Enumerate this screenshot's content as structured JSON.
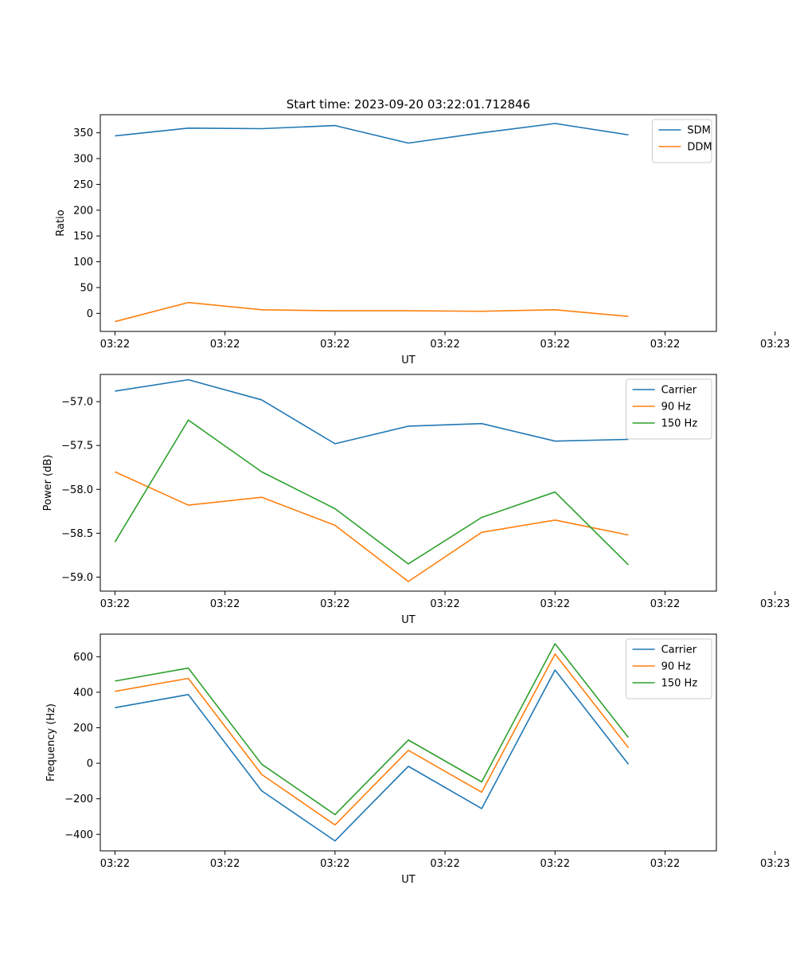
{
  "figure": {
    "title": "Start time: 2023-09-20 03:22:01.712846"
  },
  "colors": {
    "blue": "#1f77b4",
    "orange": "#ff7f0e",
    "green": "#2ca02c"
  },
  "chart_data": [
    {
      "type": "line",
      "title": "Start time: 2023-09-20 03:22:01.712846",
      "xlabel": "UT",
      "ylabel": "Ratio",
      "x": [
        1,
        2,
        3,
        4,
        5,
        6,
        7,
        8
      ],
      "xlim": [
        0.8,
        9.2
      ],
      "xticks": [
        1,
        2.5,
        4,
        5.5,
        7,
        8.5,
        10
      ],
      "xtick_labels": [
        "03:22",
        "03:22",
        "03:22",
        "03:22",
        "03:22",
        "03:22",
        "03:23"
      ],
      "ylim": [
        -35,
        385
      ],
      "yticks": [
        0,
        50,
        100,
        150,
        200,
        250,
        300,
        350
      ],
      "ytick_labels": [
        "0",
        "50",
        "100",
        "150",
        "200",
        "250",
        "300",
        "350"
      ],
      "legend": "top-right",
      "series": [
        {
          "name": "SDM",
          "color": "#1f77b4",
          "values": [
            344,
            359,
            358,
            364,
            330,
            350,
            368,
            346
          ]
        },
        {
          "name": "DDM",
          "color": "#ff7f0e",
          "values": [
            -16,
            21,
            7,
            5,
            5,
            4,
            7,
            -6
          ]
        }
      ]
    },
    {
      "type": "line",
      "title": "",
      "xlabel": "UT",
      "ylabel": "Power (dB)",
      "x": [
        1,
        2,
        3,
        4,
        5,
        6,
        7,
        8
      ],
      "xlim": [
        0.8,
        9.2
      ],
      "xticks": [
        1,
        2.5,
        4,
        5.5,
        7,
        8.5,
        10
      ],
      "xtick_labels": [
        "03:22",
        "03:22",
        "03:22",
        "03:22",
        "03:22",
        "03:22",
        "03:23"
      ],
      "ylim": [
        -59.16,
        -56.69
      ],
      "yticks": [
        -57.0,
        -57.5,
        -58.0,
        -58.5,
        -59.0
      ],
      "ytick_labels": [
        "−57.0",
        "−57.5",
        "−58.0",
        "−58.5",
        "−59.0"
      ],
      "legend": "top-right",
      "series": [
        {
          "name": "Carrier",
          "color": "#1f77b4",
          "values": [
            -56.88,
            -56.75,
            -56.98,
            -57.48,
            -57.28,
            -57.25,
            -57.45,
            -57.43
          ]
        },
        {
          "name": "90 Hz",
          "color": "#ff7f0e",
          "values": [
            -57.8,
            -58.18,
            -58.09,
            -58.41,
            -59.05,
            -58.49,
            -58.35,
            -58.52
          ]
        },
        {
          "name": "150 Hz",
          "color": "#2ca02c",
          "values": [
            -58.6,
            -57.21,
            -57.8,
            -58.22,
            -58.85,
            -58.32,
            -58.03,
            -58.86
          ]
        }
      ]
    },
    {
      "type": "line",
      "title": "",
      "xlabel": "UT",
      "ylabel": "Frequency (Hz)",
      "x": [
        1,
        2,
        3,
        4,
        5,
        6,
        7,
        8
      ],
      "xlim": [
        0.8,
        9.2
      ],
      "xticks": [
        1,
        2.5,
        4,
        5.5,
        7,
        8.5,
        10
      ],
      "xtick_labels": [
        "03:22",
        "03:22",
        "03:22",
        "03:22",
        "03:22",
        "03:22",
        "03:23"
      ],
      "ylim": [
        -493,
        727
      ],
      "yticks": [
        -400,
        -200,
        0,
        200,
        400,
        600
      ],
      "ytick_labels": [
        "−400",
        "−200",
        "0",
        "200",
        "400",
        "600"
      ],
      "legend": "top-right",
      "series": [
        {
          "name": "Carrier",
          "color": "#1f77b4",
          "values": [
            313,
            387,
            -155,
            -437,
            -17,
            -255,
            525,
            -5
          ]
        },
        {
          "name": "90 Hz",
          "color": "#ff7f0e",
          "values": [
            405,
            478,
            -63,
            -347,
            73,
            -163,
            615,
            88
          ]
        },
        {
          "name": "150 Hz",
          "color": "#2ca02c",
          "values": [
            463,
            536,
            -5,
            -289,
            131,
            -105,
            673,
            145
          ]
        }
      ]
    }
  ]
}
